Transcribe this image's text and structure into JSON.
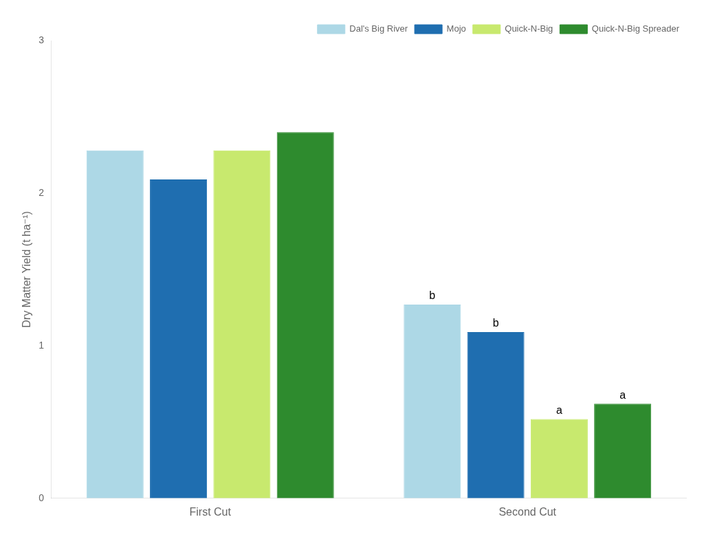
{
  "chart_data": {
    "type": "bar",
    "ylabel": "Dry Matter Yield (t ha⁻¹)",
    "categories": [
      "First Cut",
      "Second Cut"
    ],
    "series": [
      {
        "name": "Dal's Big River",
        "color": "#add8e6",
        "values": [
          2.28,
          1.27
        ],
        "annotations": [
          null,
          "b"
        ]
      },
      {
        "name": "Mojo",
        "color": "#1f6eb0",
        "values": [
          2.09,
          1.09
        ],
        "annotations": [
          null,
          "b"
        ]
      },
      {
        "name": "Quick-N-Big",
        "color": "#c8e96e",
        "values": [
          2.28,
          0.52
        ],
        "annotations": [
          null,
          "a"
        ]
      },
      {
        "name": "Quick-N-Big Spreader",
        "color": "#2e8b2e",
        "values": [
          2.4,
          0.62
        ],
        "annotations": [
          null,
          "a"
        ]
      }
    ],
    "ylim": [
      0,
      3.0
    ],
    "yticks": [
      0,
      1,
      2,
      3
    ],
    "grid": false,
    "legend": "upper right"
  }
}
